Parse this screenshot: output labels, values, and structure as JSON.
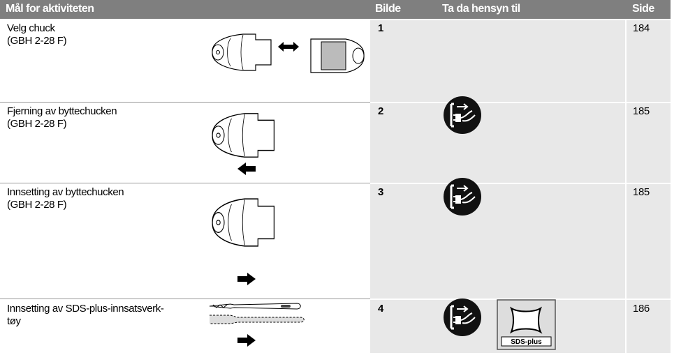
{
  "header": {
    "activity": "Mål for aktiviteten",
    "figure": "Bilde",
    "note": "Ta da hensyn til",
    "page": "Side"
  },
  "rows": [
    {
      "activity": [
        "Velg chuck",
        "(GBH 2-28 F)"
      ],
      "figure": 1,
      "page": 184
    },
    {
      "activity": [
        "Fjerning av byttechucken",
        "(GBH 2-28 F)"
      ],
      "figure": 2,
      "page": 185
    },
    {
      "activity": [
        "Innsetting av byttechucken",
        "(GBH 2-28 F)"
      ],
      "figure": 3,
      "page": 185
    },
    {
      "activity": [
        "Innsetting av SDS-plus-innsatsverk-",
        "tøy"
      ],
      "figure": 4,
      "page": 186,
      "icon_label": "SDS-plus"
    }
  ]
}
